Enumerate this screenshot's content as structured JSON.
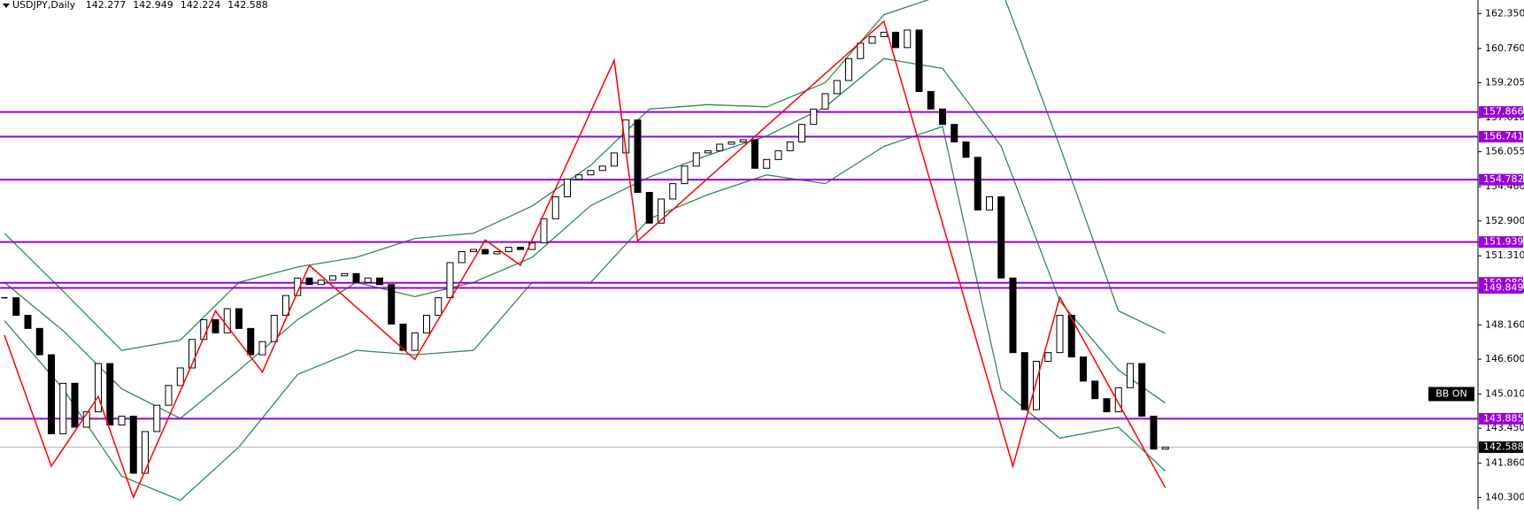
{
  "chart_data": {
    "type": "candlestick",
    "title": "USDJPY,Daily",
    "header_values": [
      142.277,
      142.949,
      142.224,
      142.588
    ],
    "values": [
      149.4,
      148.6,
      148.0,
      146.8,
      143.2,
      145.5,
      143.5,
      144.2,
      146.4,
      143.6,
      144.0,
      141.4,
      143.3,
      144.5,
      145.4,
      146.2,
      147.5,
      148.4,
      147.8,
      148.9,
      148.0,
      146.8,
      147.4,
      148.6,
      149.5,
      150.3,
      150.0,
      150.2,
      150.4,
      150.5,
      150.1,
      150.3,
      150.0,
      148.2,
      147.0,
      147.8,
      148.6,
      149.4,
      151.0,
      151.5,
      151.6,
      151.4,
      151.5,
      151.7,
      151.6,
      151.9,
      153.0,
      154.0,
      154.8,
      155.0,
      155.2,
      155.4,
      156.0,
      157.5,
      154.2,
      152.8,
      153.9,
      154.6,
      155.4,
      156.0,
      156.1,
      156.4,
      156.5,
      156.6,
      155.3,
      155.7,
      156.1,
      156.5,
      157.3,
      158.0,
      158.7,
      159.3,
      160.3,
      161.0,
      161.3,
      161.5,
      160.8,
      161.6,
      158.8,
      158.0,
      157.3,
      156.5,
      155.8,
      153.4,
      154.0,
      150.3,
      146.9,
      144.3,
      146.5,
      146.9,
      148.6,
      146.7,
      145.6,
      144.8,
      144.2,
      145.3,
      146.4,
      144.0,
      142.5,
      142.588
    ],
    "up_color": "#ffffff",
    "down_color": "#000000",
    "ylim": [
      139.75,
      162.97
    ],
    "yticks": [
      {
        "value": 162.35,
        "label": "162.350"
      },
      {
        "value": 160.76,
        "label": "160.760"
      },
      {
        "value": 159.205,
        "label": "159.205"
      },
      {
        "value": 157.61,
        "label": "157.610"
      },
      {
        "value": 156.055,
        "label": "156.055"
      },
      {
        "value": 154.46,
        "label": "154.460"
      },
      {
        "value": 152.9,
        "label": "152.900"
      },
      {
        "value": 151.31,
        "label": "151.310"
      },
      {
        "value": 149.755,
        "label": "149.755"
      },
      {
        "value": 148.16,
        "label": "148.160"
      },
      {
        "value": 146.6,
        "label": "146.600"
      },
      {
        "value": 145.01,
        "label": "145.010"
      },
      {
        "value": 143.45,
        "label": "143.450"
      },
      {
        "value": 141.86,
        "label": "141.860"
      },
      {
        "value": 140.3,
        "label": "140.300"
      }
    ],
    "levels": [
      157.866,
      156.741,
      154.782,
      151.939,
      {
        "value": 150.08,
        "label": "150.080"
      },
      149.849,
      143.885
    ],
    "level_color": "#9b00d9",
    "current_price": 142.588,
    "zigzag": {
      "color": "#ff0000",
      "x": [
        0,
        4,
        8,
        11,
        18,
        22,
        26,
        35,
        41,
        44,
        52,
        54,
        75,
        86,
        90,
        99
      ],
      "values": [
        147.69,
        141.72,
        144.9,
        140.3,
        148.8,
        146.01,
        150.88,
        146.59,
        152.03,
        150.88,
        160.22,
        151.99,
        162.0,
        141.72,
        149.42,
        140.74
      ]
    },
    "bands_x": [
      0,
      5,
      10,
      15,
      20,
      25,
      30,
      35,
      40,
      45,
      50,
      55,
      60,
      65,
      70,
      75,
      80,
      85,
      90,
      95,
      99
    ],
    "bands_color": "#2e8b57",
    "bands": [
      [
        152.34,
        149.7,
        147.0,
        147.47,
        150.1,
        150.8,
        151.24,
        152.1,
        152.34,
        153.58,
        155.44,
        158.0,
        158.2,
        158.1,
        159.2,
        162.3,
        163.2,
        163.5,
        156.3,
        148.8,
        147.78
      ],
      [
        150.1,
        147.9,
        145.25,
        143.9,
        146.1,
        148.4,
        150.1,
        149.45,
        150.1,
        151.24,
        153.6,
        154.9,
        155.9,
        156.77,
        158.1,
        160.3,
        159.85,
        156.3,
        149.24,
        146.1,
        144.6
      ],
      [
        148.36,
        145.25,
        141.27,
        140.17,
        142.6,
        145.9,
        147.0,
        146.8,
        147.0,
        150.1,
        150.1,
        153.0,
        154.1,
        155.0,
        154.6,
        156.3,
        157.2,
        145.25,
        143.0,
        143.5,
        141.5
      ]
    ],
    "button": "BB ON"
  }
}
